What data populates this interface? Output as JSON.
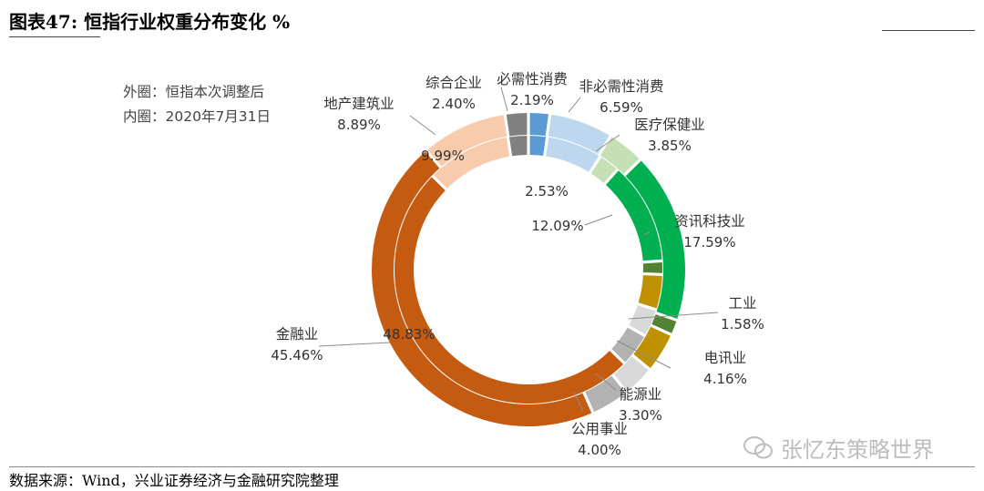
{
  "title": "图表47:  恒指行业权重分布变化  %",
  "source": "数据来源：Wind，兴业证券经济与金融研究院整理",
  "watermark": "张忆东策略世界",
  "notes": {
    "outer": "外圈：恒指本次调整后",
    "inner": "内圈：2020年7月31日"
  },
  "chart_data": {
    "type": "pie",
    "subtype": "double-donut",
    "title": "恒指行业权重分布变化  %",
    "series": [
      {
        "name": "外圈：恒指本次调整后",
        "ring": "outer"
      },
      {
        "name": "内圈：2020年7月31日",
        "ring": "inner"
      }
    ],
    "categories": [
      {
        "name": "必需性消费",
        "color": "#5b9bd5",
        "outer": 2.19,
        "inner": 2.19,
        "outer_label": "2.19%"
      },
      {
        "name": "非必需性消费",
        "color": "#bdd7ee",
        "outer": 6.59,
        "inner": 6.59,
        "outer_label": "6.59%"
      },
      {
        "name": "医疗保健业",
        "color": "#c5e0b4",
        "outer": 3.85,
        "inner": 2.53,
        "outer_label": "3.85%",
        "inner_label": "2.53%"
      },
      {
        "name": "资讯科技业",
        "color": "#00b050",
        "outer": 17.59,
        "inner": 12.09,
        "outer_label": "17.59%",
        "inner_label": "12.09%"
      },
      {
        "name": "工业",
        "color": "#548235",
        "outer": 1.58,
        "inner": 1.58,
        "outer_label": "1.58%"
      },
      {
        "name": "电讯业",
        "color": "#bf9000",
        "outer": 4.16,
        "inner": 4.16,
        "outer_label": "4.16%"
      },
      {
        "name": "能源业",
        "color": "#d9d9d9",
        "outer": 3.3,
        "inner": 3.3,
        "outer_label": "3.30%"
      },
      {
        "name": "公用事业",
        "color": "#b2b2b2",
        "outer": 4.0,
        "inner": 4.0,
        "outer_label": "4.00%"
      },
      {
        "name": "金融业",
        "color": "#c55a11",
        "outer": 45.46,
        "inner": 48.83,
        "outer_label": "45.46%",
        "inner_label": "48.83%"
      },
      {
        "name": "地产建筑业",
        "color": "#f8cbad",
        "outer": 8.89,
        "inner": 9.99,
        "outer_label": "8.89%",
        "inner_label": "9.99%"
      },
      {
        "name": "综合企业",
        "color": "#808080",
        "outer": 2.4,
        "inner": 2.4,
        "outer_label": "2.40%"
      }
    ]
  }
}
